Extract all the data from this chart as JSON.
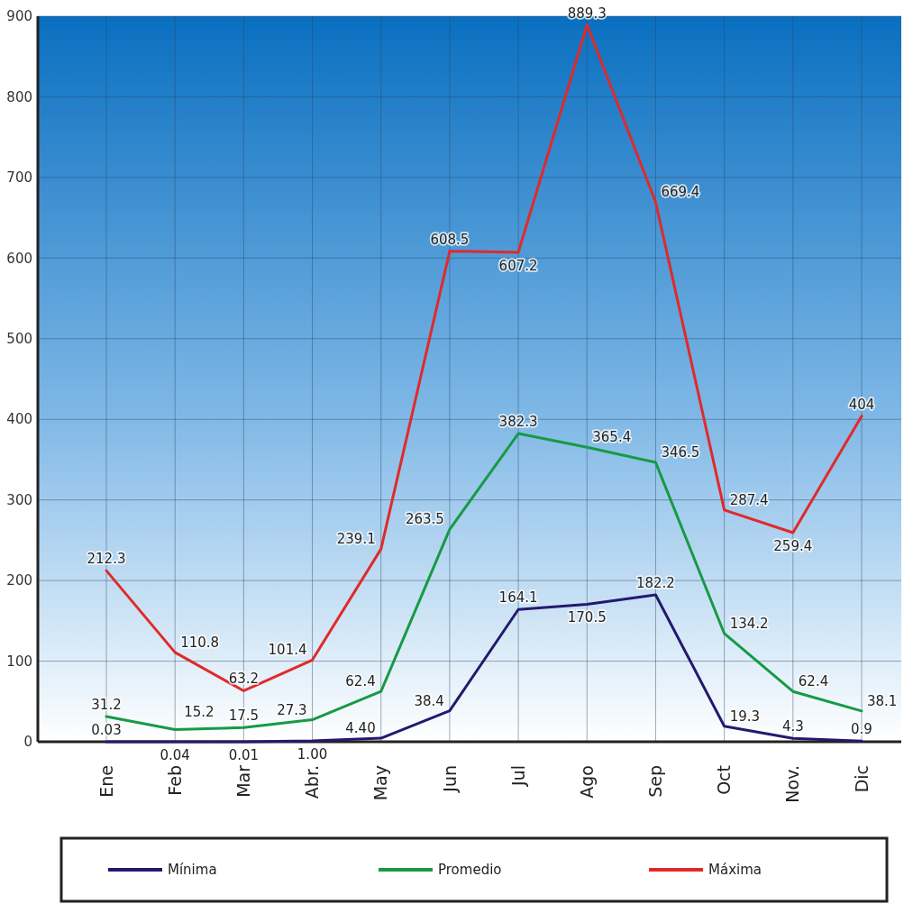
{
  "chart_data": {
    "type": "line",
    "categories": [
      "Ene",
      "Feb",
      "Mar",
      "Abr.",
      "May",
      "Jun",
      "Jul",
      "Ago",
      "Sep",
      "Oct",
      "Nov.",
      "Dic"
    ],
    "ylim": [
      0,
      900
    ],
    "yticks": [
      0,
      100,
      200,
      300,
      400,
      500,
      600,
      700,
      800,
      900
    ],
    "grid": true,
    "legend": "bottom",
    "marker": "none",
    "line_style": "solid",
    "series": [
      {
        "name": "Mínima",
        "color": "#231a6e",
        "values": [
          0.03,
          0.04,
          0.01,
          1,
          4.4,
          38.4,
          164.1,
          170.5,
          182.2,
          19.3,
          4.3,
          0.9
        ],
        "value_labels": [
          "0.03",
          "0.04",
          "0.01",
          "1.00",
          "4.40",
          "38.4",
          "164.1",
          "170.5",
          "182.2",
          "19.3",
          "4.3",
          "0.9"
        ]
      },
      {
        "name": "Promedio",
        "color": "#169a45",
        "values": [
          31.2,
          15.2,
          17.5,
          27.3,
          62.4,
          263.5,
          382.3,
          365.4,
          346.5,
          134.2,
          62.4,
          38.1
        ],
        "value_labels": [
          "31.2",
          "15.2",
          "17.5",
          "27.3",
          "62.4",
          "263.5",
          "382.3",
          "365.4",
          "346.5",
          "134.2",
          "62.4",
          "38.1"
        ]
      },
      {
        "name": "Máxima",
        "color": "#e02a2a",
        "values": [
          212.3,
          110.8,
          63.2,
          101.4,
          239.1,
          608.5,
          607.2,
          889.3,
          669.4,
          287.4,
          259.4,
          404
        ],
        "value_labels": [
          "212.3",
          "110.8",
          "63.2",
          "101.4",
          "239.1",
          "608.5",
          "607.2",
          "889.3",
          "669.4",
          "287.4",
          "259.4",
          "404"
        ]
      }
    ]
  }
}
